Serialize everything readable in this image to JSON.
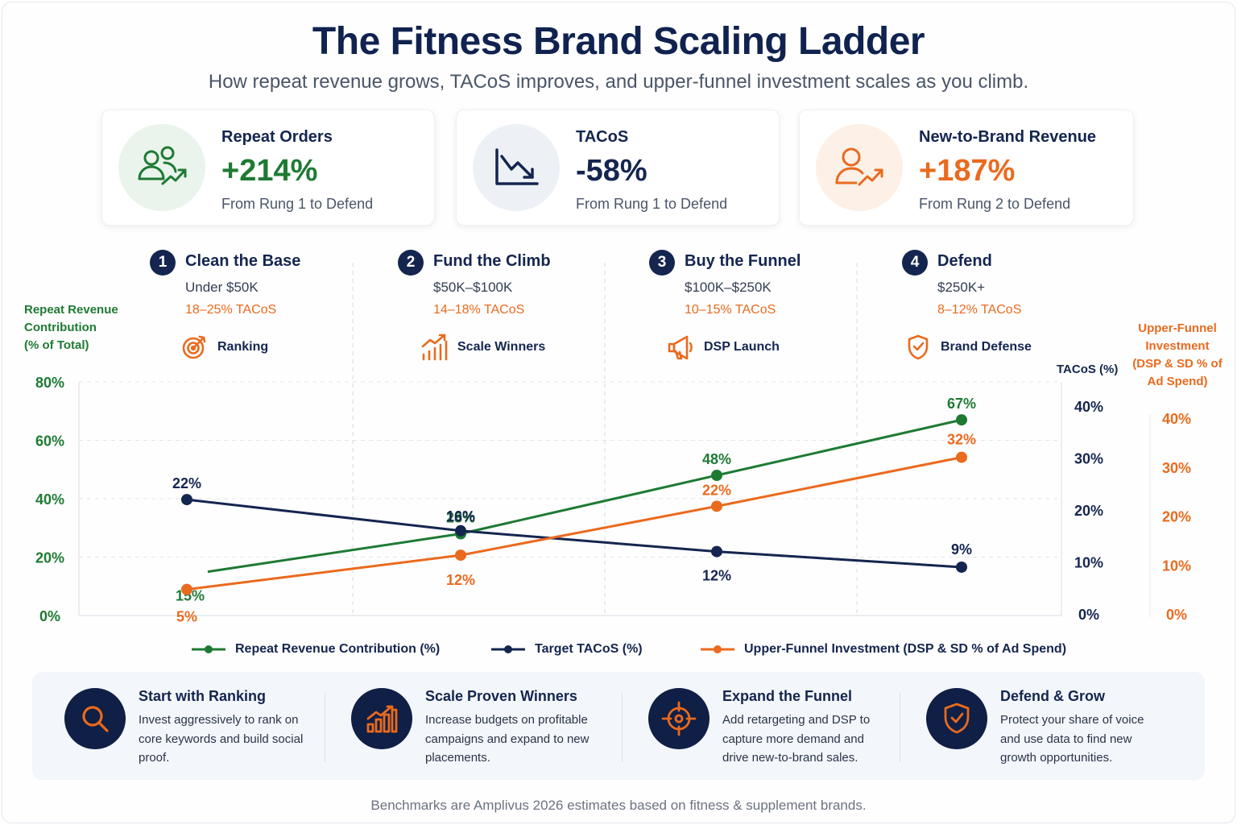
{
  "title": "The Fitness Brand Scaling Ladder",
  "subtitle": "How repeat revenue grows, TACoS improves, and upper-funnel investment scales as you climb.",
  "kpis": [
    {
      "title": "Repeat Orders",
      "value": "+214%",
      "sub": "From Rung 1 to Defend",
      "color": "#1e7a33",
      "icon": "people-growth-icon"
    },
    {
      "title": "TACoS",
      "value": "-58%",
      "sub": "From Rung 1 to Defend",
      "color": "#14254f",
      "icon": "trend-down-icon"
    },
    {
      "title": "New-to-Brand Revenue",
      "value": "+187%",
      "sub": "From Rung 2 to Defend",
      "color": "#ea6a1e",
      "icon": "person-growth-icon"
    }
  ],
  "rungs": [
    {
      "num": "1",
      "title": "Clean the Base",
      "range": "Under $50K",
      "tacos": "18–25% TACoS",
      "tag": "Ranking",
      "icon": "target-icon"
    },
    {
      "num": "2",
      "title": "Fund the Climb",
      "range": "$50K–$100K",
      "tacos": "14–18% TACoS",
      "tag": "Scale Winners",
      "icon": "bar-growth-icon"
    },
    {
      "num": "3",
      "title": "Buy the Funnel",
      "range": "$100K–$250K",
      "tacos": "10–15% TACoS",
      "tag": "DSP Launch",
      "icon": "megaphone-icon"
    },
    {
      "num": "4",
      "title": "Defend",
      "range": "$250K+",
      "tacos": "8–12% TACoS",
      "tag": "Brand Defense",
      "icon": "shield-icon"
    }
  ],
  "axes": {
    "left_title": [
      "Repeat Revenue",
      "Contribution",
      "(% of Total)"
    ],
    "right_title": "TACoS (%)",
    "far_right_title": [
      "Upper-Funnel",
      "Investment",
      "(DSP & SD % of",
      "Ad Spend)"
    ]
  },
  "chart_data": {
    "type": "line",
    "categories": [
      "Clean the Base",
      "Fund the Climb",
      "Buy the Funnel",
      "Defend"
    ],
    "series": [
      {
        "name": "Repeat Revenue Contribution (%)",
        "values": [
          15,
          28,
          48,
          67
        ],
        "labels": [
          "15%",
          "28%",
          "48%",
          "67%"
        ],
        "axis": "left",
        "color": "#1e7a33"
      },
      {
        "name": "Target TACoS (%)",
        "values": [
          22,
          16,
          12,
          9
        ],
        "labels": [
          "22%",
          "16%",
          "12%",
          "9%"
        ],
        "axis": "right",
        "color": "#14254f"
      },
      {
        "name": "Upper-Funnel Investment (DSP & SD % of Ad Spend)",
        "values": [
          5,
          12,
          22,
          32
        ],
        "labels": [
          "5%",
          "12%",
          "22%",
          "32%"
        ],
        "axis": "far_right",
        "color": "#ea6a1e"
      }
    ],
    "left_axis": {
      "ticks": [
        "80%",
        "60%",
        "40%",
        "20%",
        "0%"
      ],
      "range": [
        0,
        80
      ],
      "color": "#1e7a33"
    },
    "right_axis": {
      "ticks": [
        "40%",
        "30%",
        "20%",
        "10%",
        "0%"
      ],
      "range": [
        0,
        40
      ],
      "color": "#14254f"
    },
    "far_right_axis": {
      "ticks": [
        "40%",
        "30%",
        "20%",
        "10%",
        "0%"
      ],
      "range": [
        0,
        40
      ],
      "color": "#ea6a1e"
    },
    "grid": true,
    "legend_position": "bottom"
  },
  "steps": [
    {
      "title": "Start with Ranking",
      "desc": "Invest aggressively to rank on core keywords and build social proof.",
      "icon": "magnifier-icon"
    },
    {
      "title": "Scale Proven Winners",
      "desc": "Increase budgets on profitable campaigns and expand to new placements.",
      "icon": "bar-chart-icon"
    },
    {
      "title": "Expand the Funnel",
      "desc": "Add retargeting and DSP to capture more demand and drive new-to-brand sales.",
      "icon": "crosshair-icon"
    },
    {
      "title": "Defend & Grow",
      "desc": "Protect your share of voice and use data to find new growth opportunities.",
      "icon": "shield-check-icon"
    }
  ],
  "footer": "Benchmarks are Amplivus 2026 estimates based on fitness & supplement brands."
}
